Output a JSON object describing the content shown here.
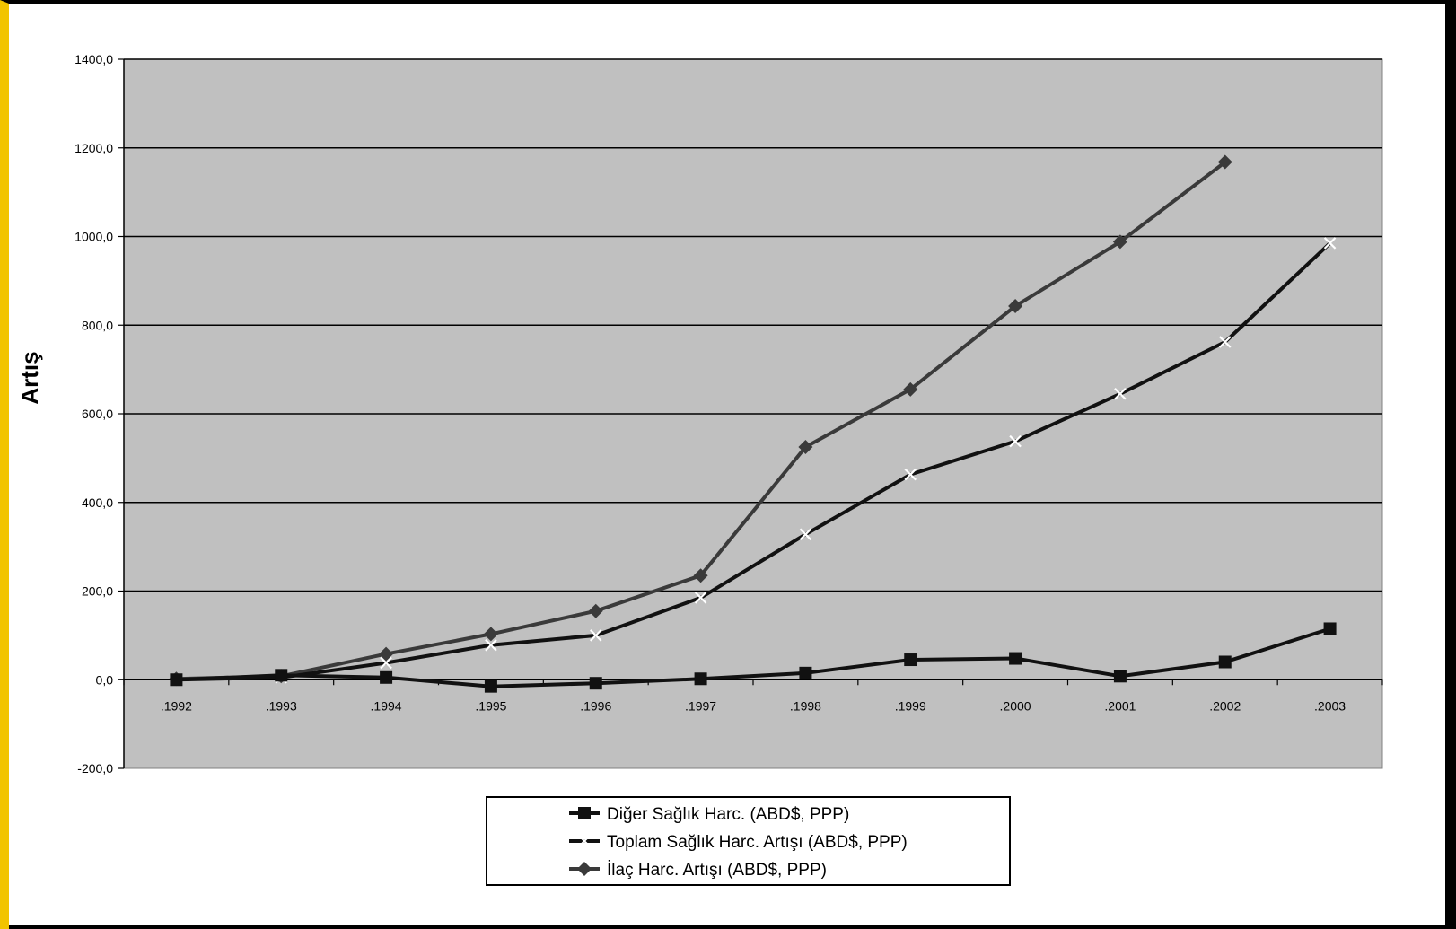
{
  "chart_data": {
    "type": "line",
    "ylabel": "Artış",
    "xlabel": "",
    "ylim": [
      -200,
      1400
    ],
    "yticks": [
      "1400,0",
      "1200,0",
      "1000,0",
      "800,0",
      "600,0",
      "400,0",
      "200,0",
      "0,0",
      "-200,0"
    ],
    "ytick_values": [
      1400,
      1200,
      1000,
      800,
      600,
      400,
      200,
      0,
      -200
    ],
    "categories": [
      ".1992",
      ".1993",
      ".1994",
      ".1995",
      ".1996",
      ".1997",
      ".1998",
      ".1999",
      ".2000",
      ".2001",
      ".2002",
      ".2003"
    ],
    "grid": "horizontal",
    "plot_background": "#c0c0c0",
    "legend_position": "bottom-center",
    "series": [
      {
        "name": "Diğer Sağlık Harc. (ABD$, PPP)",
        "marker": "square",
        "color": "#111111",
        "values": [
          0,
          10,
          5,
          -15,
          -8,
          2,
          15,
          45,
          48,
          8,
          40,
          115
        ]
      },
      {
        "name": "Toplam Sağlık Harc. Artışı (ABD$, PPP)",
        "marker": "x",
        "color": "#111111",
        "values": [
          0,
          5,
          38,
          78,
          100,
          185,
          328,
          463,
          538,
          645,
          762,
          985
        ]
      },
      {
        "name": "İlaç Harc. Artışı (ABD$, PPP)",
        "marker": "diamond",
        "color": "#3a3a3a",
        "values": [
          2,
          8,
          58,
          103,
          155,
          235,
          525,
          655,
          843,
          988,
          1168,
          null
        ]
      }
    ]
  }
}
